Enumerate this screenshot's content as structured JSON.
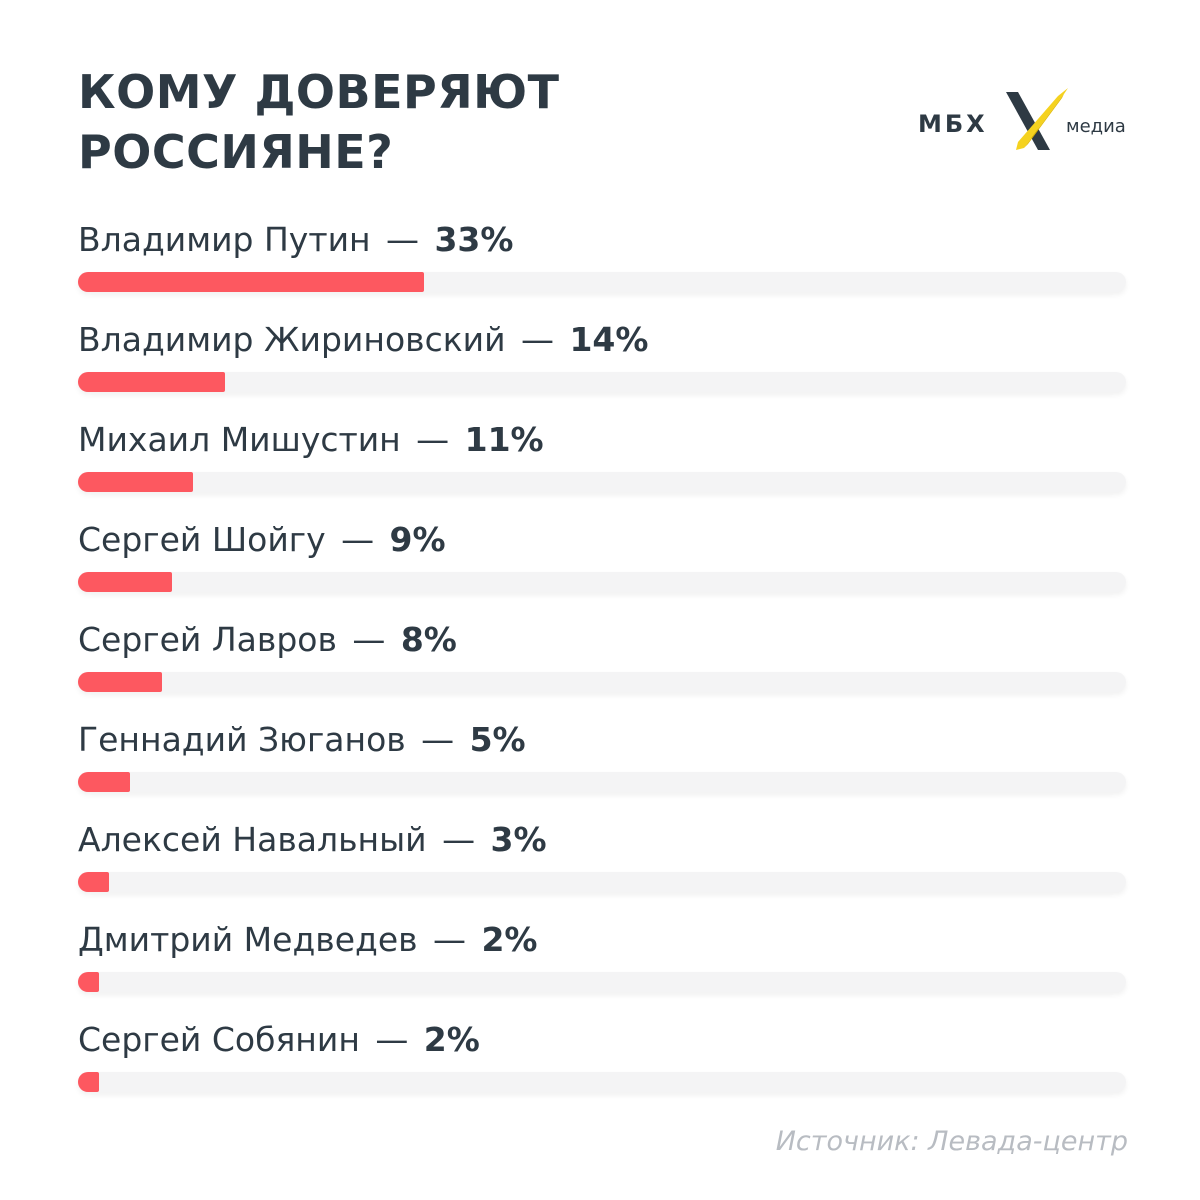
{
  "title_lines": [
    "КОМУ ДОВЕРЯЮТ",
    "РОССИЯНЕ?"
  ],
  "logo": {
    "left_text": "МБХ",
    "right_text": "медиа",
    "mark_color": "#f5d21f"
  },
  "dash": "—",
  "source": "Источник: Левада-центр",
  "colors": {
    "bar_fill": "#fd5860",
    "track": "#f4f4f5",
    "text": "#2e3a44",
    "source_text": "#b8bcc2"
  },
  "chart_data": {
    "type": "bar",
    "orientation": "horizontal",
    "title": "КОМУ ДОВЕРЯЮТ РОССИЯНЕ?",
    "categories": [
      "Владимир Путин",
      "Владимир Жириновский",
      "Михаил Мишустин",
      "Сергей Шойгу",
      "Сергей Лавров",
      "Геннадий Зюганов",
      "Алексей Навальный",
      "Дмитрий Медведев",
      "Сергей Собянин"
    ],
    "values": [
      33,
      14,
      11,
      9,
      8,
      5,
      3,
      2,
      2
    ],
    "value_labels": [
      "33%",
      "14%",
      "11%",
      "9%",
      "8%",
      "5%",
      "3%",
      "2%",
      "2%"
    ],
    "unit": "%",
    "xlim": [
      0,
      100
    ],
    "grid": false,
    "legend": "none"
  }
}
